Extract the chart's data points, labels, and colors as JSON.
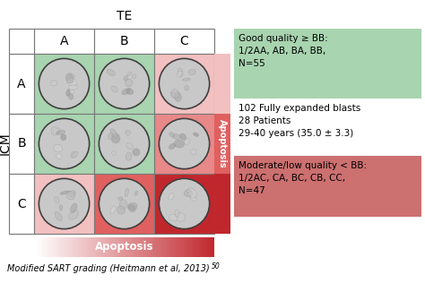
{
  "title_te": "TE",
  "title_icm": "ICM",
  "col_labels": [
    "A",
    "B",
    "C"
  ],
  "row_labels": [
    "A",
    "B",
    "C"
  ],
  "cell_colors": [
    [
      "#a8d4b0",
      "#a8d4b0",
      "#f2c0c0"
    ],
    [
      "#a8d4b0",
      "#a8d4b0",
      "#e88888"
    ],
    [
      "#f2c0c0",
      "#e06060",
      "#c0272d"
    ]
  ],
  "good_quality_box_color": "#a8d4b0",
  "moderate_quality_box_color": "#cc7070",
  "good_quality_text": "Good quality ≥ BB:\n1/2AA, AB, BA, BB,\nN=55",
  "middle_text": "102 Fully expanded blasts\n28 Patients\n29-40 years (35.0 ± 3.3)",
  "moderate_quality_text": "Moderate/low quality < BB:\n1/2AC, CA, BC, CB, CC,\nN=47",
  "apoptosis_label": "Apoptosis",
  "apoptosis_bottom_label": "Apoptosis",
  "footer_text": "Modified SART grading (Heitmann et al, 2013)",
  "footer_superscript": "50",
  "bg_color": "#ffffff",
  "grid_line_color": "#777777",
  "apo_bar_top": "#f2c0c0",
  "apo_bar_mid": "#e06060",
  "apo_bar_bot": "#c0272d",
  "apo_bottom_left": "#ffffff",
  "apo_bottom_right": "#c0272d"
}
